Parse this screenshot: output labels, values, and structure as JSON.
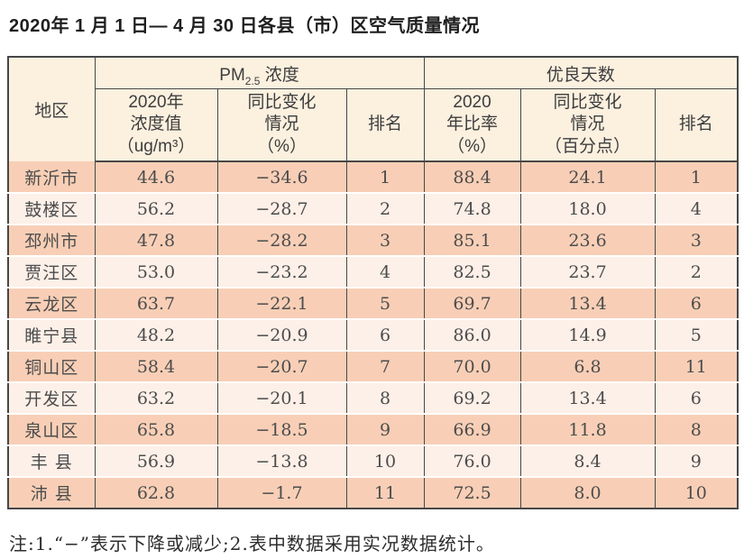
{
  "title": "2020年 1 月 1 日— 4 月 30 日各县（市）区空气质量情况",
  "table": {
    "region_header": "地区",
    "pm_group": {
      "prefix": "PM",
      "sub": "2.5",
      "suffix": " 浓度"
    },
    "good_days_group": "优良天数",
    "sub_headers": [
      "2020年\n浓度值\n（ug/m³）",
      "同比变化\n情况\n（%）",
      "排名",
      "2020\n年比率\n（%）",
      "同比变化\n情况\n（百分点）",
      "排名"
    ],
    "rows": [
      {
        "region": "新沂市",
        "pm_value": "44.6",
        "pm_change": "−34.6",
        "pm_rank": "1",
        "ratio": "88.4",
        "ratio_change": "24.1",
        "ratio_rank": "1"
      },
      {
        "region": "鼓楼区",
        "pm_value": "56.2",
        "pm_change": "−28.7",
        "pm_rank": "2",
        "ratio": "74.8",
        "ratio_change": "18.0",
        "ratio_rank": "4"
      },
      {
        "region": "邳州市",
        "pm_value": "47.8",
        "pm_change": "−28.2",
        "pm_rank": "3",
        "ratio": "85.1",
        "ratio_change": "23.6",
        "ratio_rank": "3"
      },
      {
        "region": "贾汪区",
        "pm_value": "53.0",
        "pm_change": "−23.2",
        "pm_rank": "4",
        "ratio": "82.5",
        "ratio_change": "23.7",
        "ratio_rank": "2"
      },
      {
        "region": "云龙区",
        "pm_value": "63.7",
        "pm_change": "−22.1",
        "pm_rank": "5",
        "ratio": "69.7",
        "ratio_change": "13.4",
        "ratio_rank": "6"
      },
      {
        "region": "睢宁县",
        "pm_value": "48.2",
        "pm_change": "−20.9",
        "pm_rank": "6",
        "ratio": "86.0",
        "ratio_change": "14.9",
        "ratio_rank": "5"
      },
      {
        "region": "铜山区",
        "pm_value": "58.4",
        "pm_change": "−20.7",
        "pm_rank": "7",
        "ratio": "70.0",
        "ratio_change": "6.8",
        "ratio_rank": "11"
      },
      {
        "region": "开发区",
        "pm_value": "63.2",
        "pm_change": "−20.1",
        "pm_rank": "8",
        "ratio": "69.2",
        "ratio_change": "13.4",
        "ratio_rank": "6"
      },
      {
        "region": "泉山区",
        "pm_value": "65.8",
        "pm_change": "−18.5",
        "pm_rank": "9",
        "ratio": "66.9",
        "ratio_change": "11.8",
        "ratio_rank": "8"
      },
      {
        "region": "丰 县",
        "pm_value": "56.9",
        "pm_change": "−13.8",
        "pm_rank": "10",
        "ratio": "76.0",
        "ratio_change": "8.4",
        "ratio_rank": "9"
      },
      {
        "region": "沛 县",
        "pm_value": "62.8",
        "pm_change": "−1.7",
        "pm_rank": "11",
        "ratio": "72.5",
        "ratio_change": "8.0",
        "ratio_rank": "10"
      }
    ]
  },
  "note": "注:1.“−”表示下降或减少;2.表中数据采用实况数据统计。",
  "colors": {
    "header_bg": "#fcf0df",
    "odd_row_bg": "#f8cfb6",
    "even_row_bg": "#fdf0e8",
    "border": "#474748"
  }
}
